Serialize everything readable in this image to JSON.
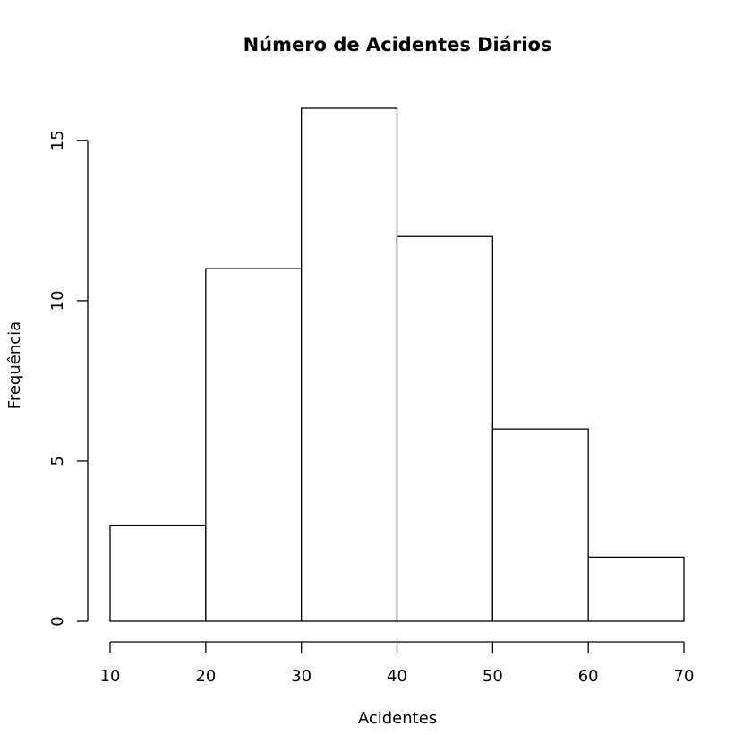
{
  "chart_data": {
    "type": "bar",
    "title": "Número de Acidentes Diários",
    "xlabel": "Acidentes",
    "ylabel": "Frequência",
    "bins": [
      {
        "start": 10,
        "end": 20,
        "count": 3
      },
      {
        "start": 20,
        "end": 30,
        "count": 11
      },
      {
        "start": 30,
        "end": 40,
        "count": 16
      },
      {
        "start": 40,
        "end": 50,
        "count": 12
      },
      {
        "start": 50,
        "end": 60,
        "count": 6
      },
      {
        "start": 60,
        "end": 70,
        "count": 2
      }
    ],
    "xlim": [
      10,
      70
    ],
    "ylim": [
      0,
      16
    ],
    "x_ticks": [
      10,
      20,
      30,
      40,
      50,
      60,
      70
    ],
    "y_ticks": [
      0,
      5,
      10,
      15
    ],
    "grid": false,
    "legend": "none"
  }
}
